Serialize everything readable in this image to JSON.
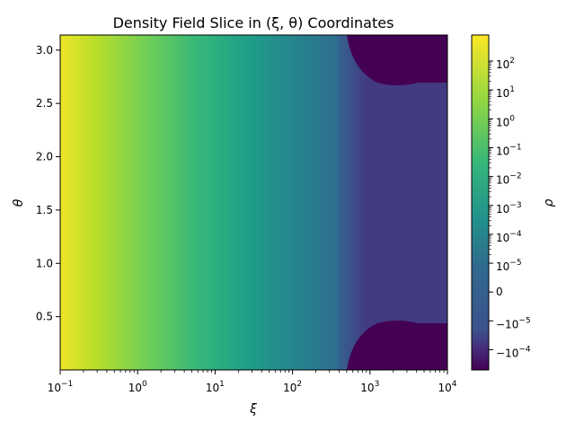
{
  "chart_data": {
    "type": "heatmap",
    "title": "Density Field Slice in (ξ, θ) Coordinates",
    "xlabel": "ξ",
    "ylabel": "θ",
    "colorbar_label": "ρ",
    "x_scale": "log",
    "xlim": [
      0.1,
      10000
    ],
    "ylim": [
      0.0,
      3.14159
    ],
    "x_ticks": [
      {
        "value": 0.1,
        "base": "10",
        "exp": "−1"
      },
      {
        "value": 1,
        "base": "10",
        "exp": "0"
      },
      {
        "value": 10,
        "base": "10",
        "exp": "1"
      },
      {
        "value": 100,
        "base": "10",
        "exp": "2"
      },
      {
        "value": 1000,
        "base": "10",
        "exp": "3"
      },
      {
        "value": 10000,
        "base": "10",
        "exp": "4"
      }
    ],
    "y_ticks": [
      {
        "value": 0.5,
        "label": "0.5"
      },
      {
        "value": 1.0,
        "label": "1.0"
      },
      {
        "value": 1.5,
        "label": "1.5"
      },
      {
        "value": 2.0,
        "label": "2.0"
      },
      {
        "value": 2.5,
        "label": "2.5"
      },
      {
        "value": 3.0,
        "label": "3.0"
      }
    ],
    "colorbar": {
      "scale": "symlog",
      "linthresh": 1e-05,
      "range": [
        -0.0005,
        800
      ],
      "colormap": "viridis",
      "ticks": [
        {
          "value": 100,
          "base": "10",
          "exp": "2"
        },
        {
          "value": 10,
          "base": "10",
          "exp": "1"
        },
        {
          "value": 1,
          "base": "10",
          "exp": "0"
        },
        {
          "value": 0.1,
          "base": "10",
          "exp": "−1"
        },
        {
          "value": 0.01,
          "base": "10",
          "exp": "−2"
        },
        {
          "value": 0.001,
          "base": "10",
          "exp": "−3"
        },
        {
          "value": 0.0001,
          "base": "10",
          "exp": "−4"
        },
        {
          "value": 1e-05,
          "base": "10",
          "exp": "−5"
        },
        {
          "value": 0,
          "label": "0"
        },
        {
          "value": -1e-05,
          "base": "−10",
          "exp": "−5"
        },
        {
          "value": -0.0001,
          "base": "−10",
          "exp": "−4"
        }
      ]
    }
  }
}
